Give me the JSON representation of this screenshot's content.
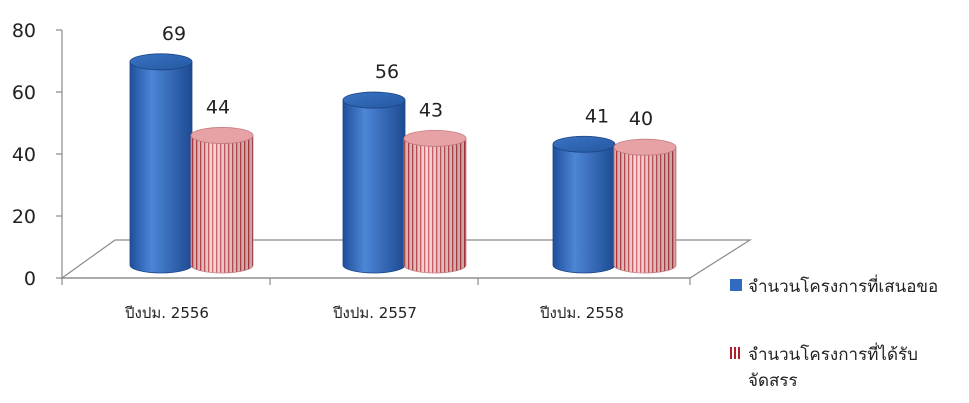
{
  "chart_data": {
    "type": "bar",
    "style": "3d-cylinder",
    "categories": [
      "ปีงปม. 2556",
      "ปีงปม. 2557",
      "ปีงปม. 2558"
    ],
    "series": [
      {
        "name": "จำนวนโครงการที่เสนอขอ",
        "values": [
          69,
          56,
          41
        ],
        "color": "#2f6cbf"
      },
      {
        "name": "จำนวนโครงการที่ได้รับจัดสรร",
        "values": [
          44,
          43,
          40
        ],
        "color": "#e8a6a6",
        "stripe_color": "#b01e2a"
      }
    ],
    "y_ticks": [
      0,
      20,
      40,
      60,
      80
    ],
    "ylim": [
      0,
      80
    ],
    "grid": false,
    "legend_position": "right"
  }
}
